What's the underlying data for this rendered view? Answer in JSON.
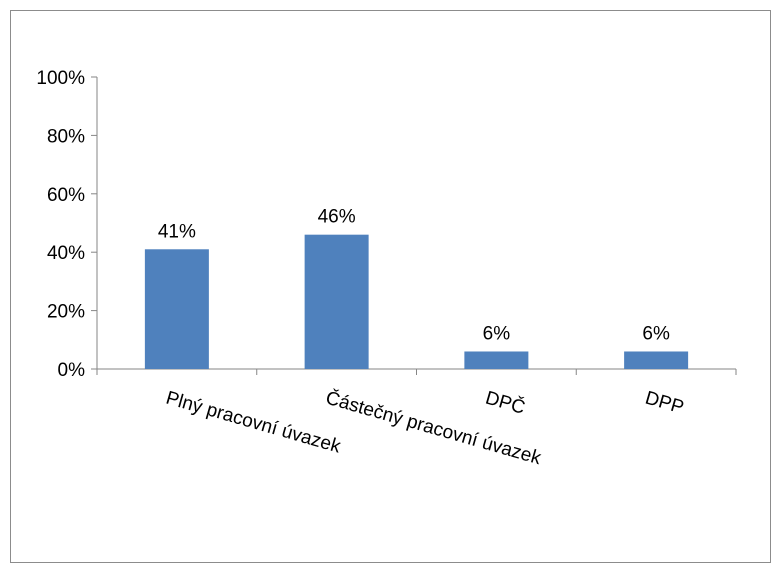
{
  "chart_data": {
    "type": "bar",
    "categories": [
      "Plný pracovní úvazek",
      "Částečný pracovní úvazek",
      "DPČ",
      "DPP"
    ],
    "values": [
      41,
      46,
      6,
      6
    ],
    "data_labels": [
      "41%",
      "46%",
      "6%",
      "6%"
    ],
    "ylim": [
      0,
      100
    ],
    "y_ticks": [
      0,
      20,
      40,
      60,
      80,
      100
    ],
    "y_tick_labels": [
      "0%",
      "20%",
      "40%",
      "60%",
      "80%",
      "100%"
    ],
    "bar_color": "#4f81bd",
    "grid": false,
    "legend": "none"
  }
}
